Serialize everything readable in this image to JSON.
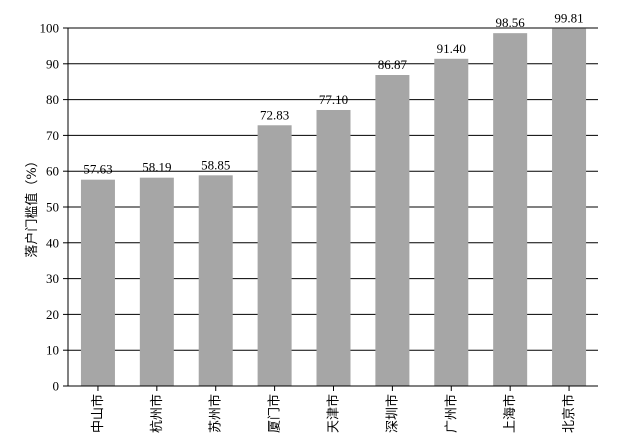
{
  "chart_data": {
    "type": "bar",
    "title": "",
    "xlabel": "",
    "ylabel": "落户门槛值（%）",
    "categories": [
      "中山市",
      "杭州市",
      "苏州市",
      "厦门市",
      "天津市",
      "深圳市",
      "广州市",
      "上海市",
      "北京市"
    ],
    "values": [
      57.63,
      58.19,
      58.85,
      72.83,
      77.1,
      86.87,
      91.4,
      98.56,
      99.81
    ],
    "value_labels": [
      "57.63",
      "58.19",
      "58.85",
      "72.83",
      "77.10",
      "86.87",
      "91.40",
      "98.56",
      "99.81"
    ],
    "ylim": [
      0,
      100
    ],
    "yticks": [
      0,
      10,
      20,
      30,
      40,
      50,
      60,
      70,
      80,
      90,
      100
    ],
    "grid": "horizontal",
    "bar_color": "#a6a6a6",
    "grid_color": "#000000"
  }
}
